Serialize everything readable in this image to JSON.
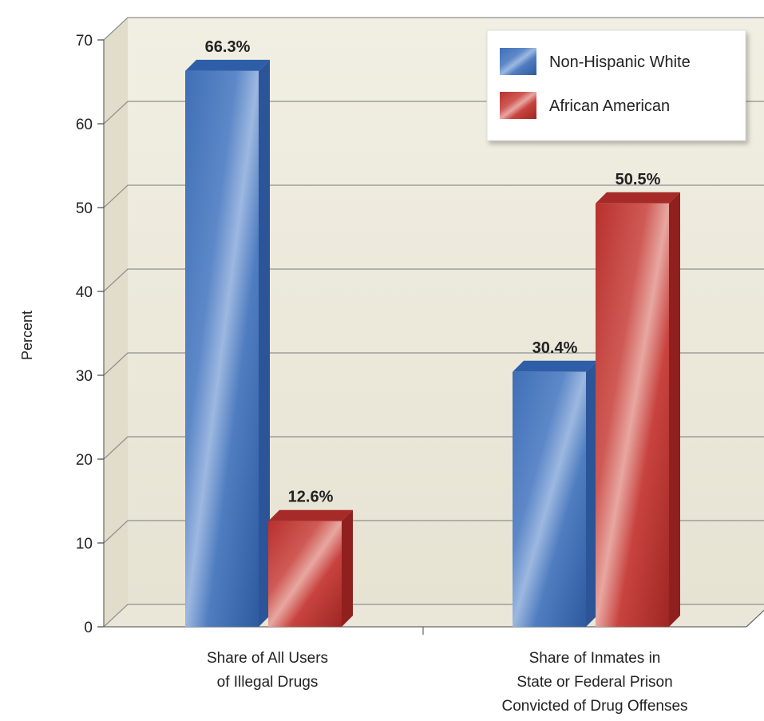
{
  "chart_data": {
    "type": "bar",
    "categories": [
      [
        "Share of All Users",
        "of Illegal Drugs"
      ],
      [
        "Share of Inmates in",
        "State or Federal Prison",
        "Convicted of Drug Offenses"
      ]
    ],
    "series": [
      {
        "name": "Non-Hispanic White",
        "values": [
          66.3,
          30.4
        ],
        "labels": [
          "66.3%",
          "30.4%"
        ]
      },
      {
        "name": "African American",
        "values": [
          12.6,
          50.5
        ],
        "labels": [
          "12.6%",
          "50.5%"
        ]
      }
    ],
    "ylabel": "Percent",
    "yticks": [
      0,
      10,
      20,
      30,
      40,
      50,
      60,
      70
    ],
    "ylim": [
      0,
      70
    ],
    "grid": true,
    "legend_position": "top-right",
    "style": "3d",
    "colors": {
      "Non-Hispanic White": "#3d6eb4",
      "African American": "#c03a36"
    }
  }
}
